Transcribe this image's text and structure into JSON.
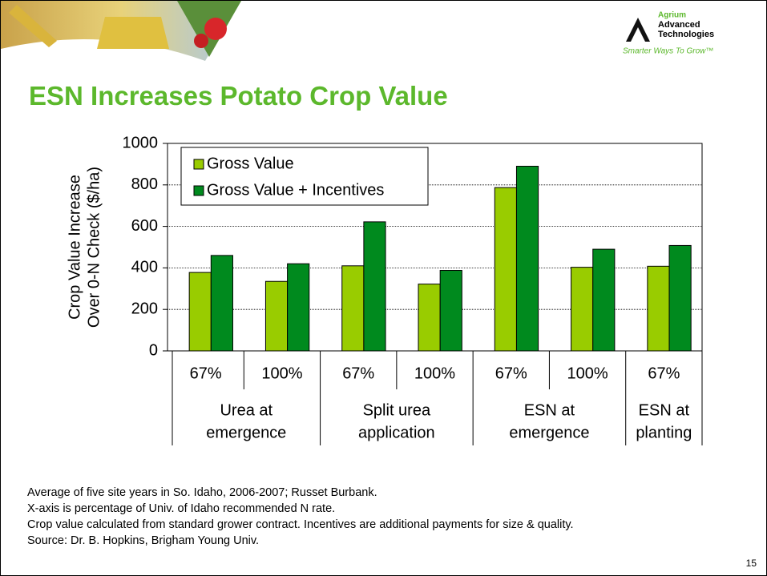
{
  "header": {
    "logo": {
      "name": [
        "Agrium",
        "Advanced",
        "Technologies"
      ],
      "tagline": "Smarter Ways To Grow™"
    }
  },
  "title": "ESN Increases Potato Crop Value",
  "chart_data": {
    "type": "bar",
    "y_label": [
      "Crop Value Increase",
      "Over 0-N Check ($/ha)"
    ],
    "groups": [
      {
        "label": [
          "Urea at",
          "emergence"
        ],
        "categories": [
          "67%",
          "100%"
        ]
      },
      {
        "label": [
          "Split urea",
          "application"
        ],
        "categories": [
          "67%",
          "100%"
        ]
      },
      {
        "label": [
          "ESN at",
          "emergence"
        ],
        "categories": [
          "67%",
          "100%"
        ]
      },
      {
        "label": [
          "ESN at",
          "planting"
        ],
        "categories": [
          "67%"
        ]
      }
    ],
    "series": [
      {
        "name": "Gross Value",
        "color": "#99cc00",
        "values": [
          378,
          335,
          410,
          322,
          787,
          403,
          408
        ]
      },
      {
        "name": "Gross Value + Incentives",
        "color": "#008a1e",
        "values": [
          460,
          420,
          622,
          388,
          890,
          490,
          508
        ]
      }
    ],
    "ylim": [
      0,
      1000
    ],
    "yticks": [
      0,
      200,
      400,
      600,
      800,
      1000
    ],
    "grid": true,
    "legend": "top-left"
  },
  "notes": [
    "Average of five site years in So. Idaho, 2006-2007; Russet Burbank.",
    "X-axis is percentage of Univ. of Idaho recommended N rate.",
    "Crop value calculated from standard grower contract. Incentives are additional payments for size & quality.",
    "Source:  Dr. B. Hopkins, Brigham Young Univ."
  ],
  "page_number": "15"
}
